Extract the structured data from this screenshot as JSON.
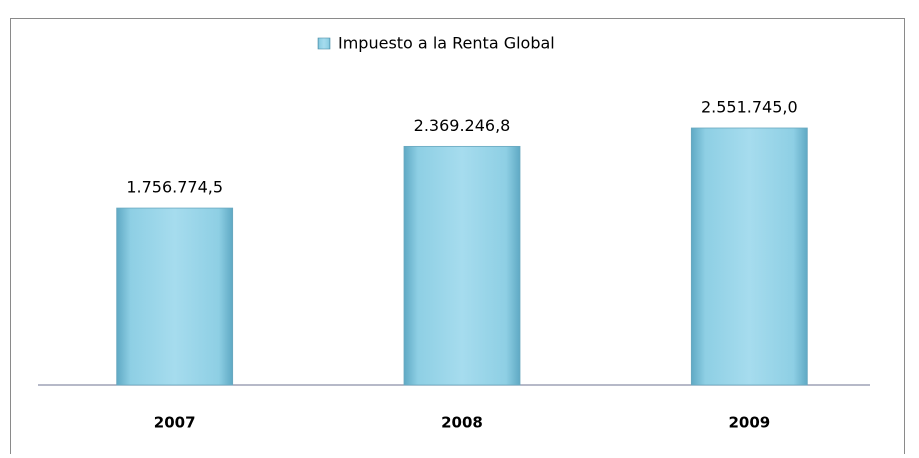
{
  "chart_data": {
    "type": "bar",
    "categories": [
      "2007",
      "2008",
      "2009"
    ],
    "series": [
      {
        "name": "Impuesto a la Renta Global",
        "color": "#8ecfe4",
        "values": [
          1756774.5,
          2369246.8,
          2551745.0
        ],
        "value_labels": [
          "1.756.774,5",
          "2.369.246,8",
          "2.551.745,0"
        ]
      }
    ],
    "legend": "top"
  }
}
